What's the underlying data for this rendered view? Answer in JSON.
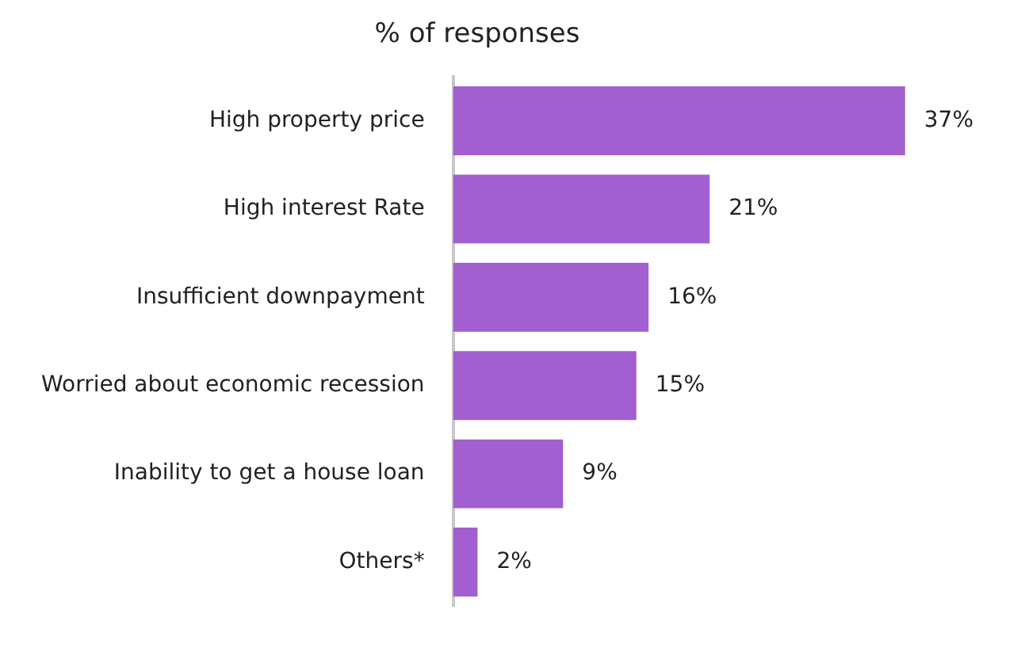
{
  "chart_data": {
    "type": "bar",
    "orientation": "horizontal",
    "title": "% of responses",
    "categories": [
      "High property price",
      "High interest Rate",
      "Insufficient downpayment",
      "Worried about economic recession",
      "Inability to get a house loan",
      "Others*"
    ],
    "values": [
      37,
      21,
      16,
      15,
      9,
      2
    ],
    "value_labels": [
      "37%",
      "21%",
      "16%",
      "15%",
      "9%",
      "2%"
    ],
    "color": "#a15fcf"
  }
}
